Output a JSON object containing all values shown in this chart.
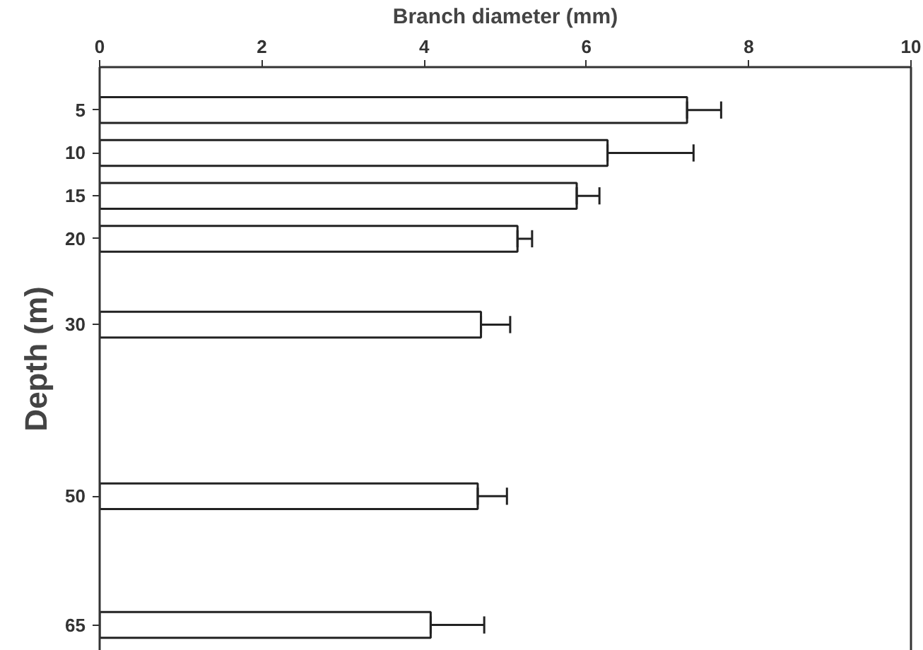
{
  "chart_data": {
    "type": "bar",
    "orientation": "horizontal",
    "xlabel": "Branch diameter (mm)",
    "ylabel": "Depth (m)",
    "x": [
      5,
      10,
      15,
      20,
      30,
      50,
      65
    ],
    "series": [
      {
        "color": "#ffffff",
        "values": [
          7.24,
          6.26,
          5.88,
          5.15,
          4.7,
          4.66,
          4.08
        ],
        "errors": [
          [
            7.24,
            7.66
          ],
          [
            6.26,
            7.32
          ],
          [
            5.88,
            6.16
          ],
          [
            5.15,
            5.33
          ],
          [
            4.7,
            5.06
          ],
          [
            4.66,
            5.02
          ],
          [
            4.08,
            4.74
          ]
        ]
      }
    ],
    "xlim": [
      0,
      10
    ],
    "xticks": [
      0,
      2,
      4,
      6,
      8,
      10
    ],
    "ylim": [
      68,
      0
    ],
    "yticks": [
      5,
      10,
      15,
      20,
      30,
      50,
      65
    ],
    "grid": false
  }
}
